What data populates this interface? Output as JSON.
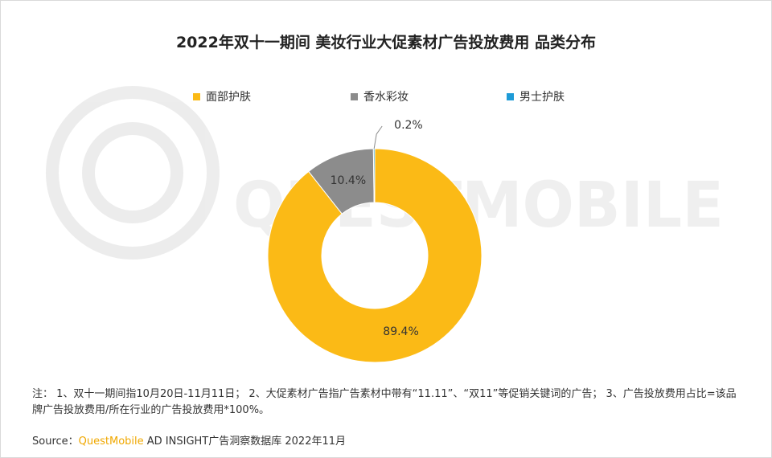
{
  "title": "2022年双十一期间 美妆行业大促素材广告投放费用 品类分布",
  "watermark": "QUESTMOBILE",
  "chart_data": {
    "type": "donut",
    "categories": [
      "面部护肤",
      "香水彩妆",
      "男士护肤"
    ],
    "values": [
      89.4,
      10.4,
      0.2
    ],
    "labels": [
      "89.4%",
      "10.4%",
      "0.2%"
    ],
    "colors": [
      "#FBBA16",
      "#8C8C8C",
      "#1E9BD7"
    ],
    "legend_position": "top"
  },
  "note": "注：  1、双十一期间指10月20日-11月11日；  2、大促素材广告指广告素材中带有“11.11”、“双11”等促销关键词的广告；  3、广告投放费用占比=该品牌广告投放费用/所在行业的广告投放费用*100%。",
  "source": {
    "prefix": "Source：",
    "brand": "QuestMobile",
    "suffix": " AD INSIGHT广告洞察数据库 2022年11月"
  }
}
